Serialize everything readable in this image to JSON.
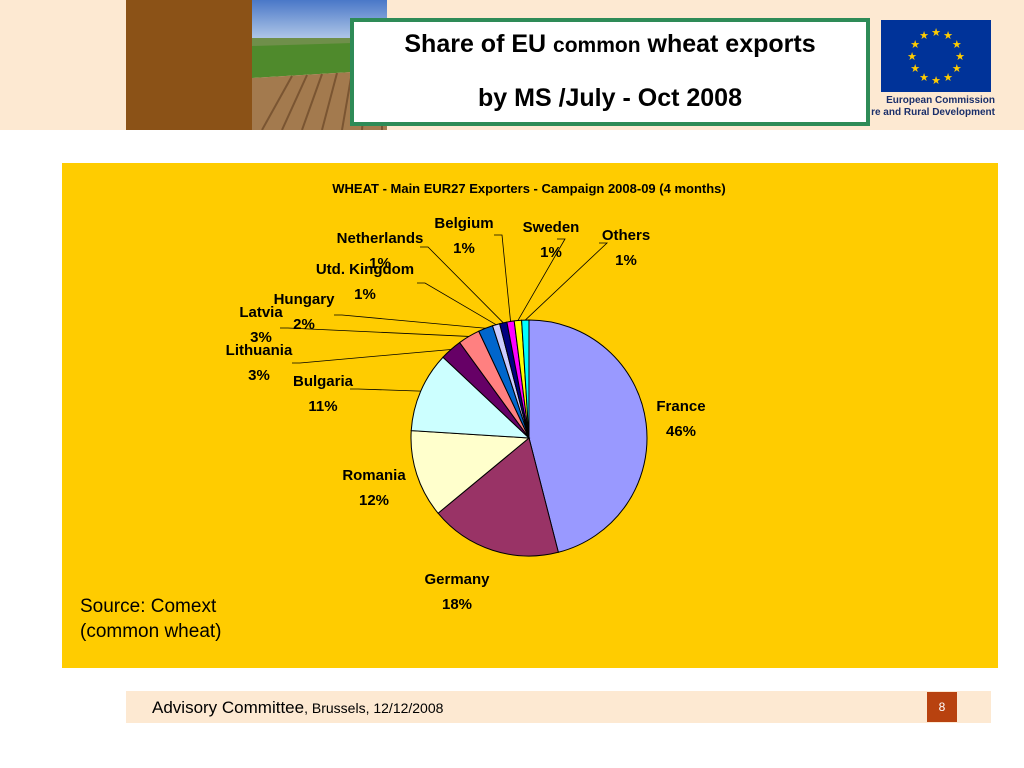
{
  "slide": {
    "title_part1": "Share of EU ",
    "title_part2": "common",
    "title_part3": " wheat exports",
    "title_line2": "by MS /July - Oct 2008",
    "ec_line1": "European Commission",
    "ec_line2": "re and Rural Development",
    "source_line1": "Source: Comext",
    "source_line2": "(common wheat)",
    "footer_main": "Advisory Committee",
    "footer_rest": ", Brussels, 12/12/2008",
    "page_number": "8"
  },
  "chart_data": {
    "type": "pie",
    "title": "WHEAT - Main EUR27 Exporters - Campaign 2008-09 (4 months)",
    "slices": [
      {
        "name": "France",
        "value": 46,
        "label": "46%",
        "color": "#9999ff"
      },
      {
        "name": "Germany",
        "value": 18,
        "label": "18%",
        "color": "#993366"
      },
      {
        "name": "Romania",
        "value": 12,
        "label": "12%",
        "color": "#ffffcc"
      },
      {
        "name": "Bulgaria",
        "value": 11,
        "label": "11%",
        "color": "#ccffff"
      },
      {
        "name": "Lithuania",
        "value": 3,
        "label": "3%",
        "color": "#660066"
      },
      {
        "name": "Latvia",
        "value": 3,
        "label": "3%",
        "color": "#ff8080"
      },
      {
        "name": "Hungary",
        "value": 2,
        "label": "2%",
        "color": "#0066cc"
      },
      {
        "name": "Utd. Kingdom",
        "value": 1,
        "label": "1%",
        "color": "#ccccff"
      },
      {
        "name": "Netherlands",
        "value": 1,
        "label": "1%",
        "color": "#000080"
      },
      {
        "name": "Belgium",
        "value": 1,
        "label": "1%",
        "color": "#ff00ff"
      },
      {
        "name": "Sweden",
        "value": 1,
        "label": "1%",
        "color": "#ffff00"
      },
      {
        "name": "Others",
        "value": 1,
        "label": "1%",
        "color": "#00ffff"
      }
    ]
  },
  "colors": {
    "panel": "#ffcc00",
    "header_band": "#fde9d2",
    "title_border": "#2e8b57",
    "page_badge": "#b8420f",
    "eu_blue": "#003399"
  }
}
